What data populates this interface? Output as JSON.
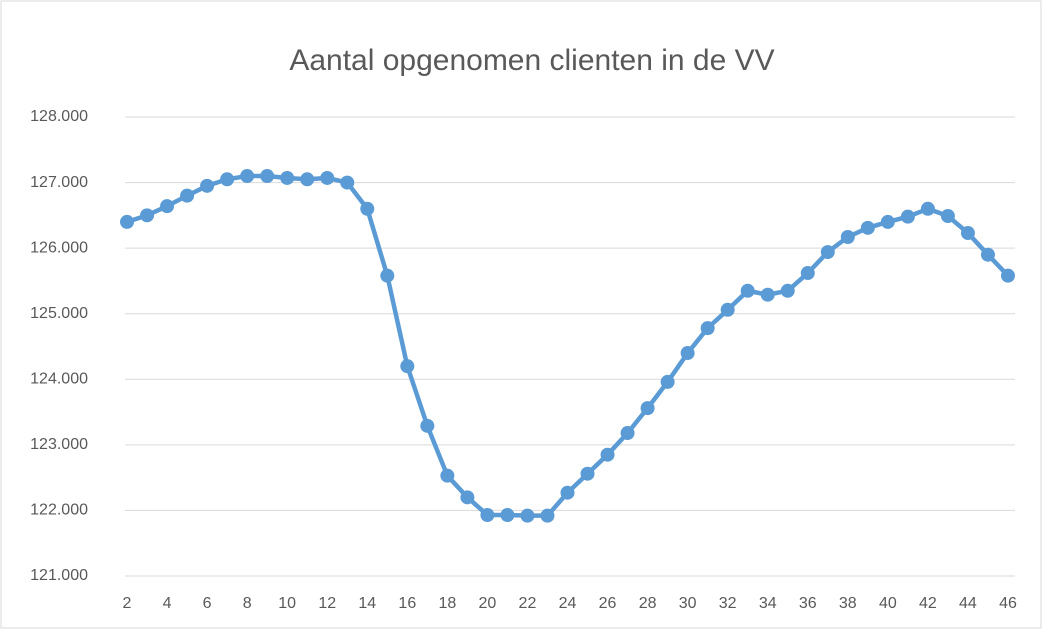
{
  "chart_data": {
    "type": "line",
    "title": "Aantal opgenomen clienten in de VV",
    "x": [
      2,
      3,
      4,
      5,
      6,
      7,
      8,
      9,
      10,
      11,
      12,
      13,
      14,
      15,
      16,
      17,
      18,
      19,
      20,
      21,
      22,
      23,
      24,
      25,
      26,
      27,
      28,
      29,
      30,
      31,
      32,
      33,
      34,
      35,
      36,
      37,
      38,
      39,
      40,
      41,
      42,
      43,
      44,
      45,
      46
    ],
    "series": [
      {
        "color": "#5b9bd5",
        "values": [
          126400,
          126500,
          126640,
          126800,
          126950,
          127050,
          127100,
          127100,
          127070,
          127050,
          127070,
          127000,
          126600,
          125580,
          124200,
          123290,
          122530,
          122200,
          121930,
          121930,
          121920,
          121920,
          122270,
          122560,
          122850,
          123180,
          123560,
          123960,
          124400,
          124780,
          125060,
          125350,
          125290,
          125350,
          125620,
          125940,
          126170,
          126310,
          126400,
          126480,
          126600,
          126490,
          126230,
          125900,
          125580
        ]
      }
    ],
    "xlim": [
      1.5,
      46.5
    ],
    "xticks": [
      2,
      4,
      6,
      8,
      10,
      12,
      14,
      16,
      18,
      20,
      22,
      24,
      26,
      28,
      30,
      32,
      34,
      36,
      38,
      40,
      42,
      44,
      46
    ],
    "ylim": [
      121000,
      128000
    ],
    "yticks": [
      {
        "value": 121000,
        "label": "121.000"
      },
      {
        "value": 122000,
        "label": "122.000"
      },
      {
        "value": 123000,
        "label": "123.000"
      },
      {
        "value": 124000,
        "label": "124.000"
      },
      {
        "value": 125000,
        "label": "125.000"
      },
      {
        "value": 126000,
        "label": "126.000"
      },
      {
        "value": 127000,
        "label": "127.000"
      },
      {
        "value": 128000,
        "label": "128.000"
      }
    ],
    "grid": true
  }
}
